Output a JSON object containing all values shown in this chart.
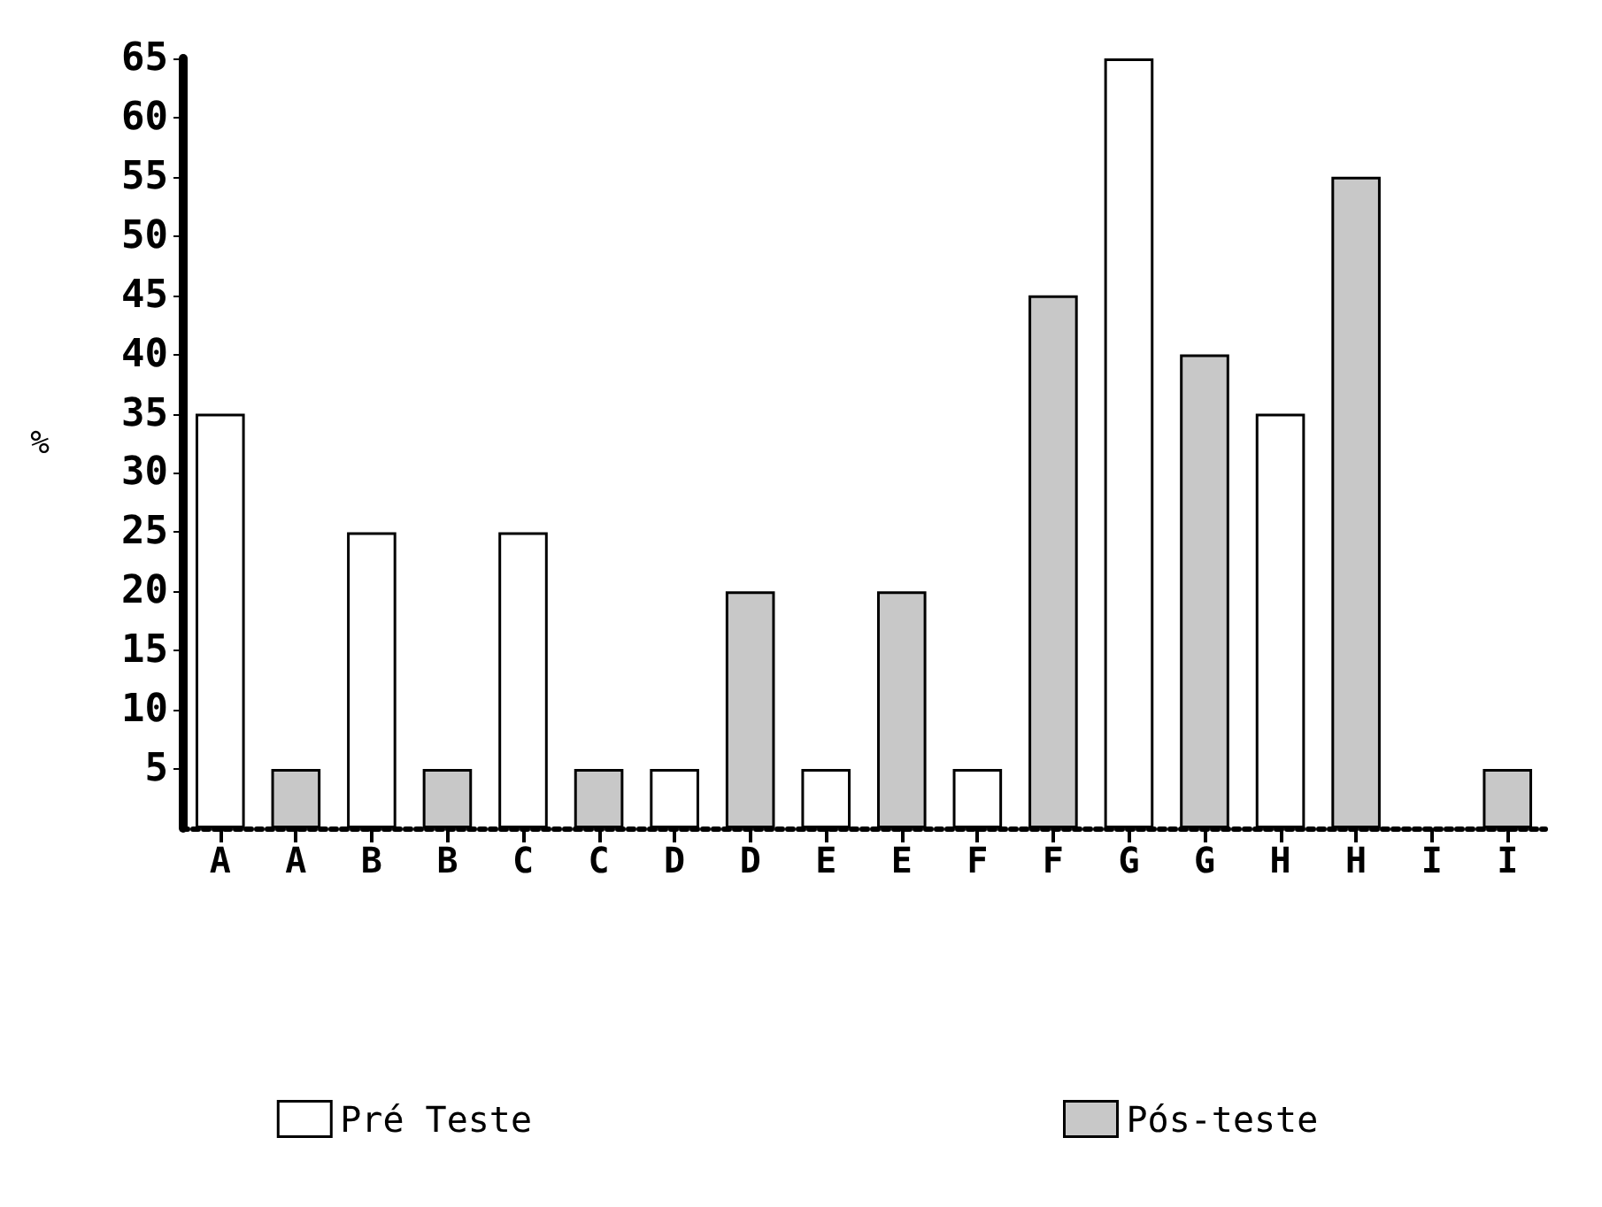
{
  "chart_data": {
    "type": "bar",
    "ylabel": "%",
    "categories": [
      "A",
      "A",
      "B",
      "B",
      "C",
      "C",
      "D",
      "D",
      "E",
      "E",
      "F",
      "F",
      "G",
      "G",
      "H",
      "H",
      "I",
      "I"
    ],
    "series": [
      {
        "name": "Pré Teste",
        "color": "#ffffff",
        "values": [
          35,
          null,
          25,
          null,
          25,
          null,
          5,
          null,
          5,
          null,
          5,
          null,
          65,
          null,
          35,
          null,
          null,
          null
        ]
      },
      {
        "name": "Pós-teste",
        "color": "#c8c8c8",
        "values": [
          null,
          5,
          null,
          5,
          null,
          5,
          null,
          20,
          null,
          20,
          null,
          45,
          null,
          40,
          null,
          55,
          null,
          5
        ]
      }
    ],
    "ylim": [
      0,
      65
    ],
    "yticks": [
      5,
      10,
      15,
      20,
      25,
      30,
      35,
      40,
      45,
      50,
      55,
      60,
      65
    ],
    "grid": false,
    "legend": "bottom"
  }
}
